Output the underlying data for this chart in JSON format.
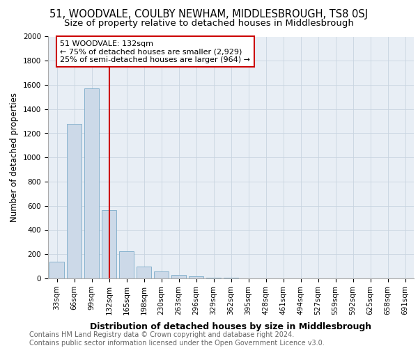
{
  "title": "51, WOODVALE, COULBY NEWHAM, MIDDLESBROUGH, TS8 0SJ",
  "subtitle": "Size of property relative to detached houses in Middlesbrough",
  "xlabel": "Distribution of detached houses by size in Middlesbrough",
  "ylabel": "Number of detached properties",
  "bar_color": "#ccd9e8",
  "bar_edge_color": "#7aaac8",
  "categories": [
    "33sqm",
    "66sqm",
    "99sqm",
    "132sqm",
    "165sqm",
    "198sqm",
    "230sqm",
    "263sqm",
    "296sqm",
    "329sqm",
    "362sqm",
    "395sqm",
    "428sqm",
    "461sqm",
    "494sqm",
    "527sqm",
    "559sqm",
    "592sqm",
    "625sqm",
    "658sqm",
    "691sqm"
  ],
  "values": [
    140,
    1280,
    1570,
    565,
    225,
    100,
    55,
    30,
    15,
    8,
    4,
    2,
    0,
    0,
    0,
    0,
    0,
    0,
    0,
    0,
    0
  ],
  "vline_x_index": 3,
  "vline_color": "#cc0000",
  "annotation_text": "51 WOODVALE: 132sqm\n← 75% of detached houses are smaller (2,929)\n25% of semi-detached houses are larger (964) →",
  "annotation_box_color": "#cc0000",
  "ylim": [
    0,
    2000
  ],
  "yticks": [
    0,
    200,
    400,
    600,
    800,
    1000,
    1200,
    1400,
    1600,
    1800,
    2000
  ],
  "footer": "Contains HM Land Registry data © Crown copyright and database right 2024.\nContains public sector information licensed under the Open Government Licence v3.0.",
  "bg_color": "#ffffff",
  "plot_bg_color": "#e8eef5",
  "grid_color": "#c8d4e0",
  "title_fontsize": 10.5,
  "subtitle_fontsize": 9.5,
  "xlabel_fontsize": 9,
  "ylabel_fontsize": 8.5,
  "tick_fontsize": 7.5,
  "footer_fontsize": 7,
  "annotation_fontsize": 8
}
